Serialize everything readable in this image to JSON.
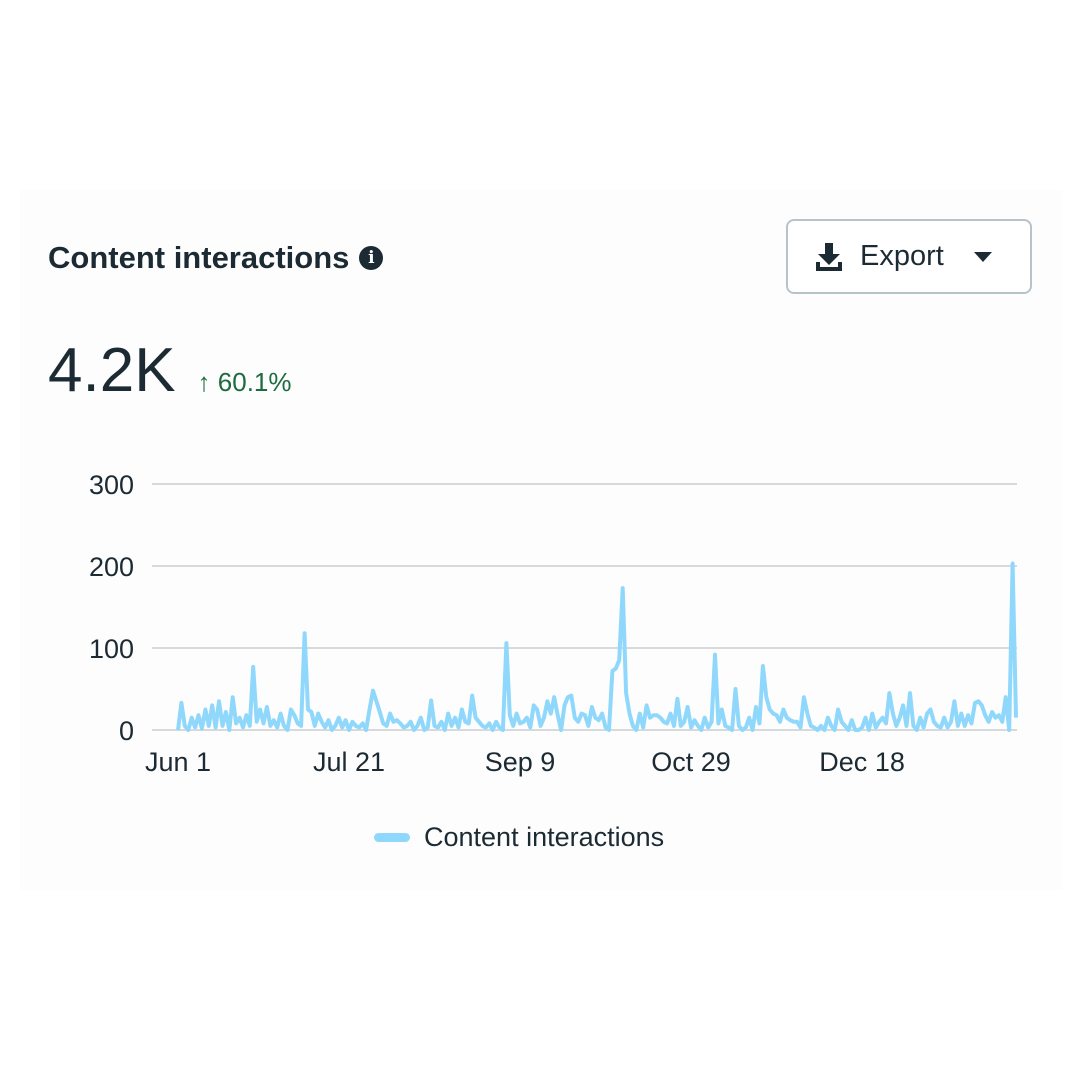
{
  "header": {
    "title": "Content interactions",
    "info_icon": "info-icon",
    "export_label": "Export",
    "export_icon": "download-icon"
  },
  "metric": {
    "value": "4.2K",
    "delta": "60.1%",
    "delta_arrow": "↑",
    "delta_color": "#1d6b3e"
  },
  "chart_data": {
    "type": "line",
    "title": "Content interactions",
    "xlabel": "",
    "ylabel": "",
    "ylim": [
      0,
      300
    ],
    "yticks": [
      "0",
      "100",
      "200",
      "300"
    ],
    "ytick_values": [
      0,
      100,
      200,
      300
    ],
    "xticks": [
      "Jun 1",
      "Jul 21",
      "Sep 9",
      "Oct 29",
      "Dec 18"
    ],
    "xtick_days": [
      0,
      50,
      100,
      150,
      200
    ],
    "xlim": [
      0,
      245
    ],
    "grid": true,
    "legend": "bottom-center",
    "series": [
      {
        "name": "Content interactions",
        "color": "#8fd8fc",
        "values": [
          0,
          33,
          5,
          0,
          15,
          3,
          18,
          2,
          25,
          5,
          30,
          3,
          35,
          5,
          22,
          0,
          40,
          8,
          15,
          3,
          18,
          5,
          77,
          10,
          25,
          8,
          28,
          5,
          12,
          3,
          20,
          5,
          0,
          25,
          18,
          8,
          5,
          118,
          25,
          22,
          5,
          20,
          10,
          3,
          12,
          0,
          5,
          15,
          3,
          12,
          0,
          10,
          5,
          3,
          8,
          0,
          25,
          48,
          35,
          22,
          8,
          5,
          20,
          10,
          12,
          8,
          3,
          5,
          10,
          0,
          5,
          15,
          0,
          3,
          36,
          5,
          3,
          10,
          0,
          20,
          5,
          15,
          3,
          25,
          10,
          8,
          42,
          15,
          10,
          5,
          3,
          8,
          0,
          10,
          3,
          0,
          106,
          18,
          5,
          20,
          8,
          10,
          15,
          3,
          30,
          25,
          5,
          15,
          35,
          20,
          40,
          18,
          0,
          30,
          40,
          42,
          15,
          10,
          20,
          18,
          5,
          28,
          15,
          12,
          20,
          3,
          0,
          72,
          75,
          85,
          173,
          45,
          20,
          5,
          0,
          20,
          3,
          30,
          15,
          18,
          18,
          15,
          10,
          8,
          20,
          5,
          38,
          5,
          10,
          28,
          3,
          12,
          5,
          0,
          15,
          3,
          10,
          92,
          8,
          25,
          5,
          3,
          0,
          50,
          5,
          0,
          3,
          15,
          0,
          28,
          8,
          78,
          40,
          25,
          20,
          18,
          10,
          25,
          15,
          12,
          10,
          10,
          3,
          40,
          20,
          5,
          3,
          0,
          5,
          0,
          15,
          5,
          0,
          25,
          10,
          5,
          0,
          12,
          0,
          0,
          3,
          15,
          0,
          20,
          3,
          10,
          15,
          8,
          45,
          20,
          5,
          15,
          30,
          5,
          45,
          5,
          0,
          15,
          3,
          20,
          25,
          10,
          5,
          3,
          15,
          3,
          10,
          35,
          5,
          20,
          5,
          18,
          8,
          33,
          35,
          30,
          18,
          10,
          22,
          15,
          18,
          10,
          40,
          0,
          203,
          15
        ]
      }
    ]
  }
}
